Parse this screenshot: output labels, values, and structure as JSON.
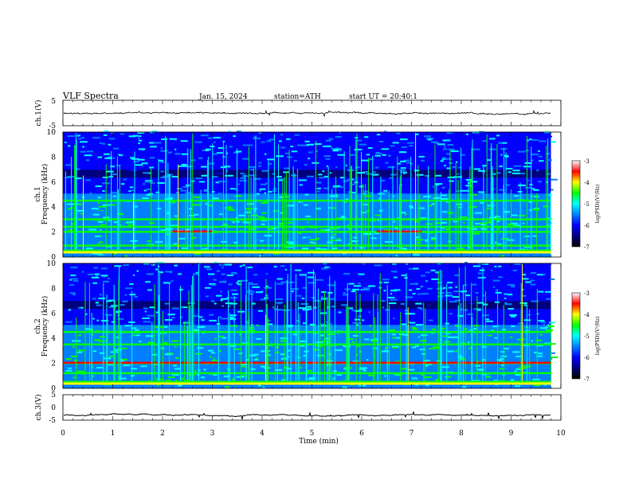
{
  "header": {
    "title": "VLF  Spectra",
    "date": "Jan. 15, 2024",
    "station": "station=ATH",
    "start": "start  UT  =   20:40:1"
  },
  "colors": {
    "colormap": [
      "#000000",
      "#00007f",
      "#0000ff",
      "#0080ff",
      "#00ffff",
      "#00ff00",
      "#ffff00",
      "#ff0000",
      "#ffffff"
    ],
    "trace": "#000000",
    "frame": "#000000"
  },
  "chart_data": [
    {
      "type": "line",
      "ylabel": "ch.1(V)",
      "ylim": [
        -5,
        5
      ],
      "yticks": [
        "5",
        "-5"
      ],
      "series": [
        {
          "baseline": 0,
          "noise_amplitude": 0.4
        }
      ]
    },
    {
      "type": "heatmap",
      "ylabel_top": "ch.1",
      "ylabel": "Frequency  (kHz)",
      "ylim": [
        0,
        10
      ],
      "yticks": [
        "10",
        "8",
        "6",
        "4",
        "2",
        "0"
      ],
      "colorbar": {
        "label": "log(PSD)(V²/Hz)",
        "ticks": [
          "-3",
          "-4",
          "-5",
          "-6",
          "-7"
        ],
        "range": [
          -7,
          -3
        ]
      },
      "bands_khz": [
        0.5,
        0.9,
        2.0,
        2.4,
        3.0,
        4.5
      ],
      "intense_segments": [
        [
          2.2,
          3.0
        ],
        [
          6.3,
          7.2
        ]
      ]
    },
    {
      "type": "heatmap",
      "ylabel_top": "ch.2",
      "ylabel": "Frequency  (kHz)",
      "ylim": [
        0,
        10
      ],
      "yticks": [
        "10",
        "8",
        "6",
        "4",
        "2",
        "0"
      ],
      "colorbar": {
        "label": "log(PSD)(V²/Hz)",
        "ticks": [
          "-3",
          "-4",
          "-5",
          "-6",
          "-7"
        ],
        "range": [
          -7,
          -3
        ]
      },
      "bands_khz": [
        0.5,
        1.2,
        2.0,
        3.5,
        4.5
      ],
      "intense_segments": [
        [
          0.0,
          9.8
        ]
      ]
    },
    {
      "type": "line",
      "ylabel": "ch.3(V)",
      "ylim": [
        -5,
        5
      ],
      "yticks": [
        "5",
        "0",
        "-5"
      ],
      "series": [
        {
          "baseline": -3,
          "noise_amplitude": 0.15
        }
      ]
    }
  ],
  "xaxis": {
    "xlabel": "Time  (min)",
    "xlim": [
      0,
      10
    ],
    "xticks": [
      "0",
      "1",
      "2",
      "3",
      "4",
      "5",
      "6",
      "7",
      "8",
      "9",
      "10"
    ],
    "data_end_min": 9.8
  }
}
